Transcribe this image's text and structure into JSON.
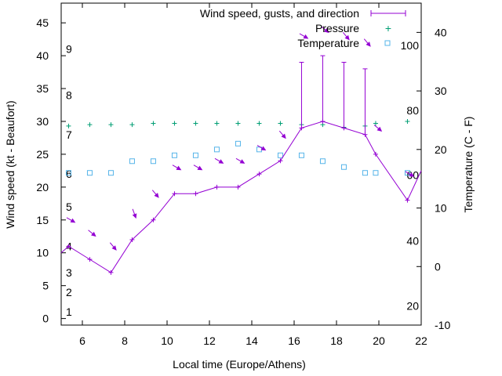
{
  "chart_data": {
    "type": "line",
    "title": "",
    "xlabel": "Local time (Europe/Athens)",
    "ylabel": "Wind speed (kt - Beaufort)",
    "y2label": "Temperature (C - F)",
    "xlim": [
      5,
      22
    ],
    "ylim": [
      -1,
      48
    ],
    "y2lim": [
      -10,
      45
    ],
    "x_ticks": [
      "6",
      "8",
      "10",
      "12",
      "14",
      "16",
      "18",
      "20",
      "22"
    ],
    "y_ticks": [
      "0",
      "5",
      "10",
      "15",
      "20",
      "25",
      "30",
      "35",
      "40",
      "45"
    ],
    "y2_ticks": [
      "-10",
      "0",
      "10",
      "20",
      "30",
      "40"
    ],
    "beaufort_labels": [
      {
        "text": "1",
        "y": 1
      },
      {
        "text": "2",
        "y": 4
      },
      {
        "text": "3",
        "y": 7
      },
      {
        "text": "4",
        "y": 11
      },
      {
        "text": "5",
        "y": 17
      },
      {
        "text": "6",
        "y": 22
      },
      {
        "text": "7",
        "y": 28
      },
      {
        "text": "8",
        "y": 34
      },
      {
        "text": "9",
        "y": 41
      }
    ],
    "fahrenheit_labels": [
      {
        "text": "20",
        "c": -6.7
      },
      {
        "text": "40",
        "c": 4.4
      },
      {
        "text": "60",
        "c": 15.6
      },
      {
        "text": "80",
        "c": 26.7
      },
      {
        "text": "100",
        "c": 37.8
      }
    ],
    "legend": {
      "position": "top-right",
      "entries": [
        "Wind speed, gusts, and direction",
        "Pressure",
        "Temperature"
      ]
    },
    "colors": {
      "wind": "#9400d3",
      "pressure": "#009e73",
      "temperature": "#56b4e9",
      "axis": "#000000"
    },
    "series": [
      {
        "name": "Wind speed, gusts, and direction",
        "x": [
          5,
          5.35,
          6.35,
          7.35,
          8.35,
          9.35,
          10.35,
          11.35,
          12.35,
          13.35,
          14.35,
          15.35,
          16.35,
          17.35,
          18.35,
          19.35,
          19.85,
          21.35,
          22
        ],
        "values": [
          10,
          11,
          9,
          7,
          12,
          15,
          19,
          19,
          20,
          20,
          22,
          24,
          29,
          30,
          29,
          28,
          25,
          18,
          22.5
        ],
        "gusts": [
          null,
          null,
          null,
          null,
          null,
          null,
          null,
          null,
          null,
          null,
          null,
          null,
          39,
          40,
          39,
          38,
          null,
          null,
          null
        ]
      },
      {
        "name": "Wind direction arrows",
        "x": [
          5.45,
          6.45,
          7.45,
          8.45,
          9.45,
          10.45,
          11.45,
          12.45,
          13.45,
          14.45,
          15.45,
          16.45,
          17.45,
          18.45,
          19.45,
          19.95,
          21.45
        ],
        "values": [
          15,
          13,
          11,
          16,
          19,
          23,
          23,
          24,
          24,
          26,
          28,
          43,
          44,
          43,
          42,
          29,
          22
        ],
        "direction_deg": [
          300,
          310,
          320,
          340,
          320,
          300,
          300,
          300,
          300,
          300,
          320,
          300,
          310,
          320,
          320,
          310,
          300
        ]
      },
      {
        "name": "Pressure",
        "x": [
          5.35,
          6.35,
          7.35,
          8.35,
          9.35,
          10.35,
          11.35,
          12.35,
          13.35,
          14.35,
          15.35,
          16.35,
          17.35,
          18.35,
          19.35,
          19.85,
          21.35
        ],
        "values": [
          29.3,
          29.5,
          29.5,
          29.5,
          29.7,
          29.7,
          29.7,
          29.7,
          29.7,
          29.7,
          29.7,
          29.5,
          29.5,
          29.1,
          29.3,
          29.7,
          30
        ]
      },
      {
        "name": "Temperature",
        "x": [
          5.35,
          6.35,
          7.35,
          8.35,
          9.35,
          10.35,
          11.35,
          12.35,
          13.35,
          14.35,
          15.35,
          16.35,
          17.35,
          18.35,
          19.35,
          19.85,
          21.35
        ],
        "values": [
          16,
          16,
          16,
          18,
          18,
          19,
          19,
          20,
          21,
          20,
          19,
          19,
          18,
          17,
          16,
          16,
          16
        ]
      }
    ]
  }
}
